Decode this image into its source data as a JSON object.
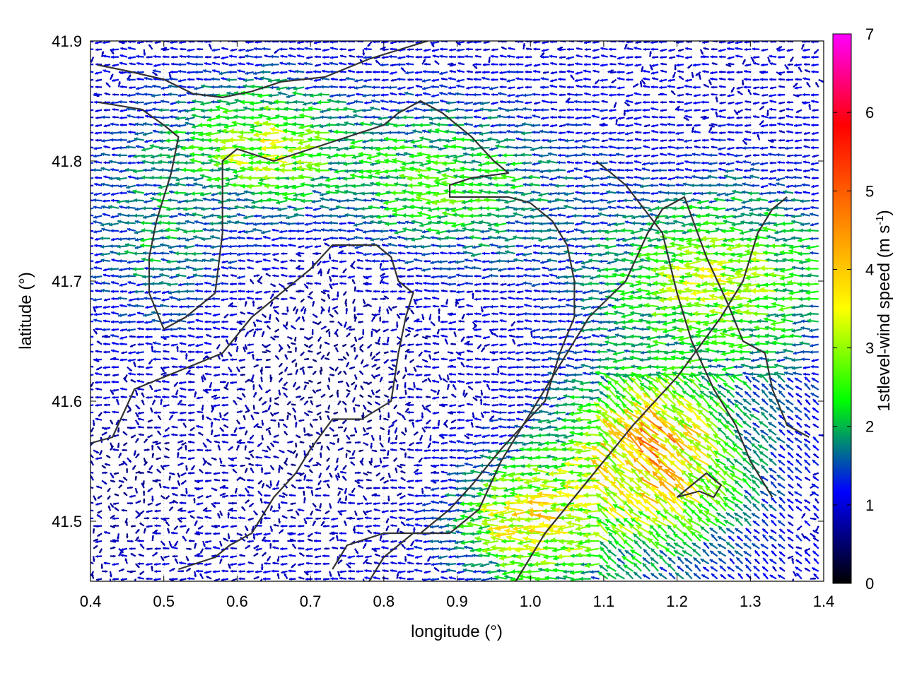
{
  "chart_data": {
    "type": "vector-field",
    "xlabel": "longitude (°)",
    "ylabel": "latitude (°)",
    "colorbar_label": "1stlevel-wind speed (m s",
    "colorbar_label_exp": "-1",
    "colorbar_label_end": ")",
    "xlim": [
      0.4,
      1.4
    ],
    "ylim": [
      41.45,
      41.9
    ],
    "colorbar_range": [
      0,
      7
    ],
    "x_ticks": [
      "0.4",
      "0.5",
      "0.6",
      "0.7",
      "0.8",
      "0.9",
      "1.0",
      "1.1",
      "1.2",
      "1.3",
      "1.4"
    ],
    "y_ticks": [
      "41.5",
      "41.6",
      "41.7",
      "41.8",
      "41.9"
    ],
    "colorbar_ticks": [
      "0",
      "1",
      "2",
      "3",
      "4",
      "5",
      "6",
      "7"
    ],
    "grid": true,
    "colormap": [
      "#000000",
      "#0000ff",
      "#00ff00",
      "#ffff00",
      "#ff8000",
      "#ff0000",
      "#ff00ff"
    ],
    "dominant_flow": "westward",
    "speed_regions": [
      {
        "lon": [
          0.78,
          1.0
        ],
        "lat": [
          41.74,
          41.82
        ],
        "speed": 2.5
      },
      {
        "lon": [
          0.56,
          0.72
        ],
        "lat": [
          41.78,
          41.84
        ],
        "speed": 3.2
      },
      {
        "lon": [
          1.1,
          1.25
        ],
        "lat": [
          41.5,
          41.6
        ],
        "speed": 4.3
      },
      {
        "lon": [
          0.95,
          1.08
        ],
        "lat": [
          41.47,
          41.53
        ],
        "speed": 3.6
      },
      {
        "lon": [
          1.15,
          1.38
        ],
        "lat": [
          41.65,
          41.75
        ],
        "speed": 3.0
      },
      {
        "lon": [
          0.45,
          0.56
        ],
        "lat": [
          41.68,
          41.8
        ],
        "speed": 1.9
      },
      {
        "lon": [
          0.62,
          0.82
        ],
        "lat": [
          41.52,
          41.7
        ],
        "speed": 0.6
      },
      {
        "lon": [
          0.4,
          0.5
        ],
        "lat": [
          41.47,
          41.6
        ],
        "speed": 0.7
      }
    ],
    "contours": [
      [
        [
          0.41,
          41.849
        ],
        [
          0.47,
          41.843
        ],
        [
          0.5,
          41.83
        ],
        [
          0.52,
          41.82
        ],
        [
          0.51,
          41.79
        ],
        [
          0.49,
          41.75
        ],
        [
          0.48,
          41.72
        ],
        [
          0.48,
          41.69
        ],
        [
          0.5,
          41.66
        ],
        [
          0.53,
          41.67
        ],
        [
          0.55,
          41.68
        ],
        [
          0.57,
          41.69
        ],
        [
          0.58,
          41.74
        ],
        [
          0.58,
          41.8
        ],
        [
          0.6,
          41.81
        ],
        [
          0.65,
          41.8
        ],
        [
          0.7,
          41.81
        ],
        [
          0.75,
          41.82
        ],
        [
          0.8,
          41.83
        ],
        [
          0.82,
          41.84
        ],
        [
          0.85,
          41.85
        ],
        [
          0.88,
          41.84
        ],
        [
          0.92,
          41.82
        ],
        [
          0.95,
          41.8
        ],
        [
          0.97,
          41.79
        ],
        [
          0.92,
          41.786
        ],
        [
          0.89,
          41.78
        ],
        [
          0.89,
          41.77
        ],
        [
          0.93,
          41.77
        ],
        [
          0.97,
          41.77
        ],
        [
          1.0,
          41.765
        ],
        [
          1.03,
          41.75
        ],
        [
          1.05,
          41.73
        ],
        [
          1.06,
          41.7
        ],
        [
          1.06,
          41.67
        ],
        [
          1.04,
          41.64
        ],
        [
          1.02,
          41.6
        ],
        [
          0.99,
          41.58
        ],
        [
          0.96,
          41.56
        ],
        [
          0.92,
          41.53
        ],
        [
          0.89,
          41.51
        ],
        [
          0.85,
          41.49
        ],
        [
          0.8,
          41.49
        ],
        [
          0.75,
          41.48
        ],
        [
          0.73,
          41.46
        ]
      ],
      [
        [
          0.4,
          41.565
        ],
        [
          0.43,
          41.57
        ],
        [
          0.46,
          41.61
        ],
        [
          0.5,
          41.62
        ],
        [
          0.54,
          41.63
        ],
        [
          0.58,
          41.64
        ],
        [
          0.62,
          41.67
        ],
        [
          0.66,
          41.69
        ],
        [
          0.7,
          41.71
        ],
        [
          0.73,
          41.73
        ],
        [
          0.76,
          41.73
        ],
        [
          0.79,
          41.73
        ],
        [
          0.81,
          41.72
        ],
        [
          0.82,
          41.7
        ],
        [
          0.84,
          41.69
        ],
        [
          0.83,
          41.67
        ],
        [
          0.82,
          41.64
        ],
        [
          0.81,
          41.6
        ],
        [
          0.77,
          41.585
        ],
        [
          0.73,
          41.585
        ],
        [
          0.7,
          41.56
        ],
        [
          0.68,
          41.54
        ],
        [
          0.65,
          41.52
        ],
        [
          0.62,
          41.49
        ],
        [
          0.59,
          41.48
        ],
        [
          0.57,
          41.47
        ],
        [
          0.52,
          41.46
        ]
      ],
      [
        [
          0.78,
          41.45
        ],
        [
          0.8,
          41.47
        ],
        [
          0.84,
          41.49
        ],
        [
          0.89,
          41.49
        ],
        [
          0.93,
          41.51
        ],
        [
          0.96,
          41.55
        ],
        [
          1.0,
          41.59
        ],
        [
          1.04,
          41.63
        ],
        [
          1.08,
          41.67
        ],
        [
          1.13,
          41.7
        ],
        [
          1.16,
          41.74
        ],
        [
          1.18,
          41.76
        ],
        [
          1.21,
          41.77
        ],
        [
          1.24,
          41.72
        ],
        [
          1.27,
          41.68
        ],
        [
          1.29,
          41.65
        ],
        [
          1.32,
          41.64
        ],
        [
          1.33,
          41.61
        ],
        [
          1.35,
          41.58
        ],
        [
          1.38,
          41.57
        ]
      ],
      [
        [
          0.41,
          41.88
        ],
        [
          0.45,
          41.875
        ],
        [
          0.5,
          41.868
        ],
        [
          0.54,
          41.856
        ],
        [
          0.58,
          41.853
        ],
        [
          0.62,
          41.858
        ],
        [
          0.66,
          41.866
        ],
        [
          0.72,
          41.87
        ],
        [
          0.78,
          41.885
        ],
        [
          0.86,
          41.9
        ]
      ],
      [
        [
          1.09,
          41.8
        ],
        [
          1.13,
          41.78
        ],
        [
          1.18,
          41.74
        ],
        [
          1.2,
          41.69
        ],
        [
          1.22,
          41.65
        ],
        [
          1.25,
          41.61
        ],
        [
          1.28,
          41.58
        ],
        [
          1.3,
          41.55
        ],
        [
          1.33,
          41.52
        ]
      ],
      [
        [
          0.98,
          41.45
        ],
        [
          1.02,
          41.49
        ],
        [
          1.06,
          41.52
        ],
        [
          1.1,
          41.55
        ],
        [
          1.14,
          41.58
        ],
        [
          1.17,
          41.6
        ],
        [
          1.2,
          41.62
        ],
        [
          1.23,
          41.645
        ],
        [
          1.26,
          41.67
        ],
        [
          1.29,
          41.7
        ],
        [
          1.31,
          41.74
        ],
        [
          1.33,
          41.76
        ],
        [
          1.35,
          41.77
        ]
      ],
      [
        [
          1.2,
          41.52
        ],
        [
          1.23,
          41.525
        ],
        [
          1.25,
          41.52
        ],
        [
          1.26,
          41.53
        ],
        [
          1.24,
          41.54
        ],
        [
          1.22,
          41.53
        ],
        [
          1.2,
          41.52
        ]
      ]
    ]
  }
}
